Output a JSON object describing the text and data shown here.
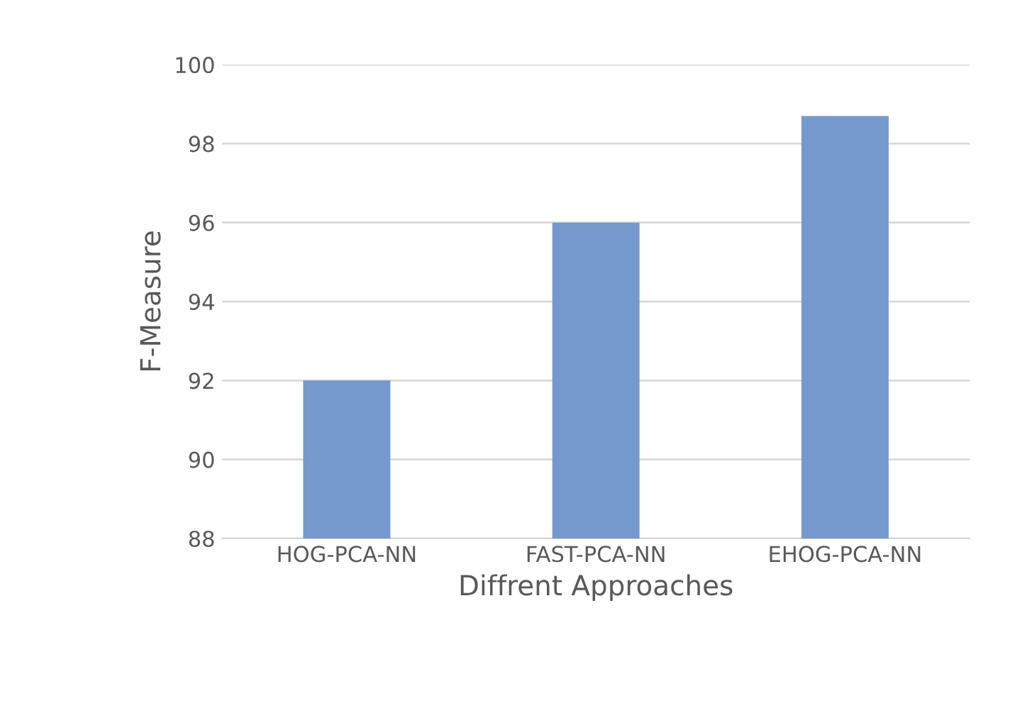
{
  "chart_data": {
    "type": "bar",
    "xlabel": "Diffrent Approaches",
    "ylabel": "F-Measure",
    "categories": [
      "HOG-PCA-NN",
      "FAST-PCA-NN",
      "EHOG-PCA-NN"
    ],
    "values": [
      92,
      96,
      98.7
    ],
    "color": "#7599cc",
    "ylim": [
      88,
      100
    ],
    "yticks": [
      88,
      90,
      92,
      94,
      96,
      98,
      100
    ],
    "grid": "y"
  }
}
